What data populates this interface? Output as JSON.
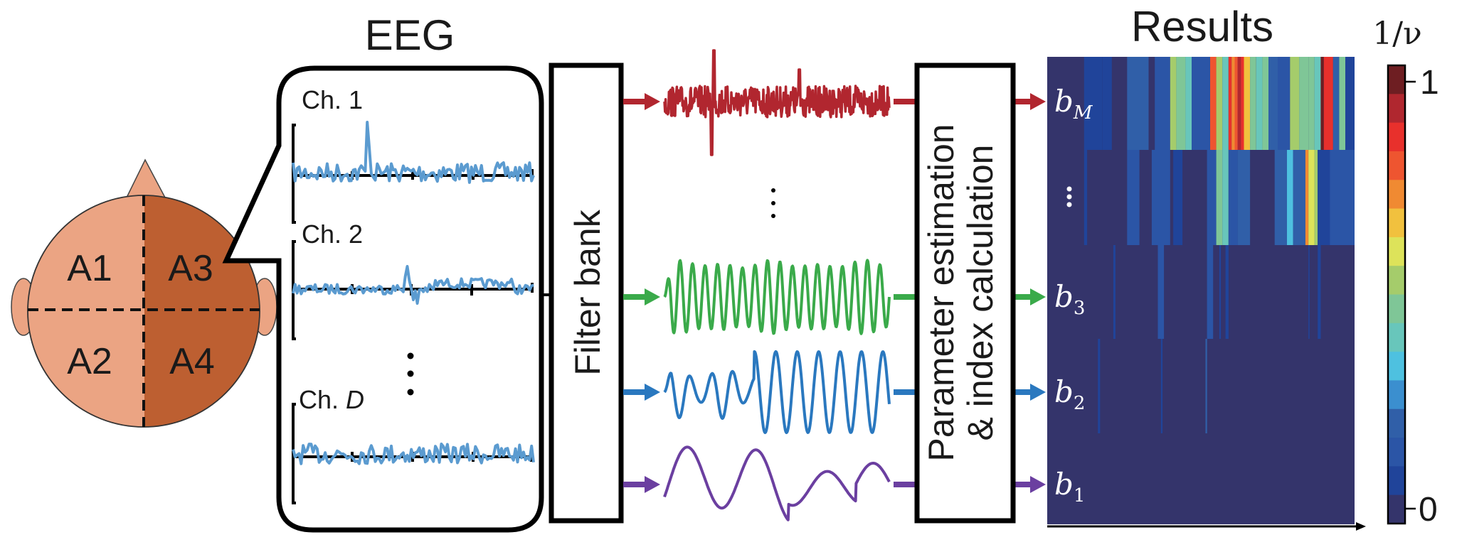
{
  "titles": {
    "eeg": "EEG",
    "results": "Results",
    "colorbar": "1/ν"
  },
  "head": {
    "regions": [
      {
        "id": "A1",
        "label": "A1",
        "color": "#eba483"
      },
      {
        "id": "A2",
        "label": "A2",
        "color": "#eba483"
      },
      {
        "id": "A3",
        "label": "A3",
        "color": "#bd5f31",
        "selected": true
      },
      {
        "id": "A4",
        "label": "A4",
        "color": "#bd5f31"
      }
    ],
    "skin_color": "#eba483",
    "dark_color": "#bd5f31"
  },
  "eeg_channels": [
    {
      "label": "Ch. 1",
      "label_prefix": "Ch. ",
      "label_var": "1",
      "italic": false,
      "style": "spike"
    },
    {
      "label": "Ch. 2",
      "label_prefix": "Ch. ",
      "label_var": "2",
      "italic": false,
      "style": "small-spike"
    },
    {
      "label": "Ch. D",
      "label_prefix": "Ch. ",
      "label_var": "D",
      "italic": true,
      "style": "noise"
    }
  ],
  "eeg_signal_color": "#5b9bd0",
  "blocks": {
    "filter_bank": "Filter bank",
    "parameter_line1": "Parameter estimation",
    "parameter_line2": "& index calculation"
  },
  "bands": [
    {
      "id": "bM",
      "base": "b",
      "sub": "M",
      "sub_italic": true,
      "color": "#b1262f",
      "signal": "broadband"
    },
    {
      "id": "b3",
      "base": "b",
      "sub": "3",
      "sub_italic": false,
      "color": "#3aaa4a",
      "signal": "beta"
    },
    {
      "id": "b2",
      "base": "b",
      "sub": "2",
      "sub_italic": false,
      "color": "#2a78bf",
      "signal": "alpha"
    },
    {
      "id": "b1",
      "base": "b",
      "sub": "1",
      "sub_italic": false,
      "color": "#6b3fa0",
      "signal": "slow"
    }
  ],
  "ellipsis": "⋮",
  "colorbar": {
    "min_label": "0",
    "max_label": "1",
    "colors": [
      "#6e1e22",
      "#b0272f",
      "#e8302c",
      "#ee5530",
      "#f08a32",
      "#f1c13e",
      "#dde35a",
      "#a5cc6b",
      "#7fc697",
      "#68c6bb",
      "#4ec1e0",
      "#3b8fcf",
      "#305fa8",
      "#2b55a6",
      "#20449a",
      "#34346b"
    ]
  },
  "chart_data": {
    "type": "heatmap",
    "title": "Results",
    "xlabel": "",
    "ylabel": "",
    "rows": [
      "bM",
      "⋮",
      "b3",
      "b2",
      "b1"
    ],
    "colorbar_label": "1/ν",
    "colorbar_range": [
      0,
      1
    ],
    "background_value": 0,
    "stripes": {
      "bM": [
        [
          0.0,
          0.03,
          0.0
        ],
        [
          0.12,
          0.18,
          0.08
        ],
        [
          0.18,
          0.21,
          0.1
        ],
        [
          0.26,
          0.33,
          0.22
        ],
        [
          0.35,
          0.4,
          0.14
        ],
        [
          0.4,
          0.42,
          0.55
        ],
        [
          0.42,
          0.45,
          0.45
        ],
        [
          0.45,
          0.47,
          0.4
        ],
        [
          0.47,
          0.53,
          0.14
        ],
        [
          0.53,
          0.55,
          0.8
        ],
        [
          0.55,
          0.57,
          0.52
        ],
        [
          0.57,
          0.59,
          0.38
        ],
        [
          0.59,
          0.6,
          0.85
        ],
        [
          0.6,
          0.61,
          0.7
        ],
        [
          0.61,
          0.62,
          0.8
        ],
        [
          0.62,
          0.63,
          0.9
        ],
        [
          0.63,
          0.64,
          0.85
        ],
        [
          0.64,
          0.66,
          0.65
        ],
        [
          0.66,
          0.68,
          0.45
        ],
        [
          0.68,
          0.7,
          0.42
        ],
        [
          0.7,
          0.72,
          0.45
        ],
        [
          0.72,
          0.75,
          0.24
        ],
        [
          0.75,
          0.79,
          0.14
        ],
        [
          0.79,
          0.82,
          0.5
        ],
        [
          0.82,
          0.85,
          0.48
        ],
        [
          0.85,
          0.87,
          0.44
        ],
        [
          0.87,
          0.89,
          0.38
        ],
        [
          0.89,
          0.9,
          0.95
        ],
        [
          0.9,
          0.93,
          0.87
        ],
        [
          0.93,
          0.95,
          0.2
        ],
        [
          0.95,
          0.97,
          0.46
        ],
        [
          0.97,
          1.0,
          0.1
        ]
      ],
      "dots": [
        [
          0.12,
          0.13,
          0.08
        ],
        [
          0.15,
          0.17,
          0.06
        ],
        [
          0.26,
          0.3,
          0.15
        ],
        [
          0.34,
          0.4,
          0.18
        ],
        [
          0.41,
          0.44,
          0.12
        ],
        [
          0.52,
          0.55,
          0.18
        ],
        [
          0.55,
          0.57,
          0.45
        ],
        [
          0.57,
          0.59,
          0.38
        ],
        [
          0.59,
          0.62,
          0.15
        ],
        [
          0.62,
          0.66,
          0.2
        ],
        [
          0.74,
          0.78,
          0.24
        ],
        [
          0.78,
          0.8,
          0.34
        ],
        [
          0.8,
          0.84,
          0.22
        ],
        [
          0.84,
          0.85,
          0.72
        ],
        [
          0.85,
          0.87,
          0.62
        ],
        [
          0.87,
          0.88,
          0.52
        ],
        [
          0.88,
          0.92,
          0.12
        ],
        [
          0.92,
          1.0,
          0.14
        ]
      ],
      "b3": [
        [
          0.215,
          0.222,
          0.12
        ],
        [
          0.36,
          0.38,
          0.14
        ],
        [
          0.52,
          0.54,
          0.14
        ],
        [
          0.56,
          0.565,
          0.12
        ],
        [
          0.58,
          0.59,
          0.1
        ],
        [
          0.85,
          0.853,
          0.1
        ],
        [
          0.88,
          0.89,
          0.1
        ]
      ],
      "b2": [
        [
          0.165,
          0.172,
          0.12
        ],
        [
          0.37,
          0.375,
          0.12
        ],
        [
          0.515,
          0.52,
          0.2
        ]
      ],
      "b1": []
    }
  }
}
